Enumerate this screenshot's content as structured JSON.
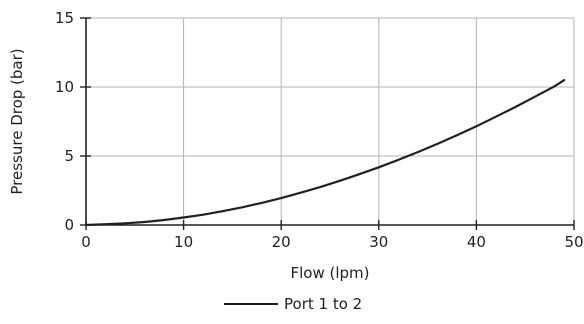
{
  "chart_data": {
    "type": "line",
    "xlabel": "Flow (lpm)",
    "ylabel": "Pressure Drop (bar)",
    "xlim": [
      0,
      50
    ],
    "ylim": [
      0,
      15
    ],
    "xticks": [
      0,
      10,
      20,
      30,
      40,
      50
    ],
    "yticks": [
      0,
      5,
      10,
      15
    ],
    "grid": true,
    "legend_position": "bottom-center",
    "series": [
      {
        "name": "Port 1 to 2",
        "color": "#231f20",
        "x": [
          0,
          2,
          4,
          6,
          8,
          10,
          12,
          14,
          16,
          18,
          20,
          22,
          24,
          26,
          28,
          30,
          32,
          34,
          36,
          38,
          40,
          42,
          44,
          46,
          48,
          49
        ],
        "y": [
          0,
          0.06,
          0.12,
          0.22,
          0.36,
          0.54,
          0.75,
          1.0,
          1.28,
          1.6,
          1.95,
          2.34,
          2.75,
          3.2,
          3.68,
          4.18,
          4.72,
          5.28,
          5.88,
          6.5,
          7.15,
          7.85,
          8.55,
          9.3,
          10.05,
          10.5
        ]
      }
    ]
  }
}
